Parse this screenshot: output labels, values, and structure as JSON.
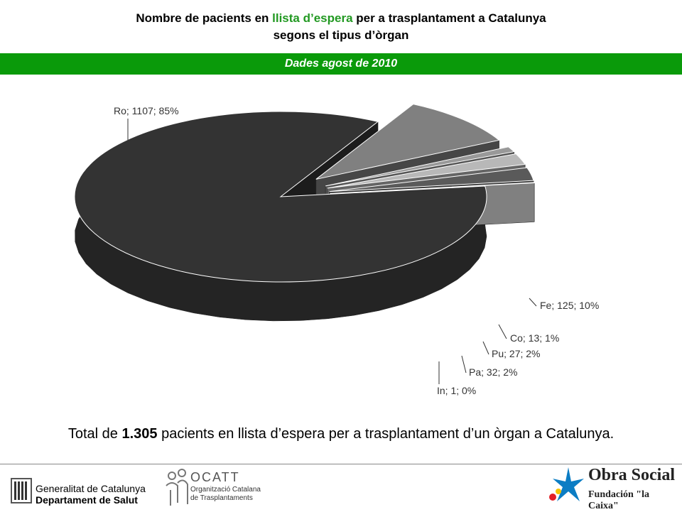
{
  "title": {
    "line1_pre": "Nombre de pacients en ",
    "line1_highlight": "llista d’espera",
    "line1_post": " per a trasplantament a Catalunya",
    "line2": "segons el tipus d’òrgan"
  },
  "banner": {
    "text": "Dades agost de 2010"
  },
  "chart_data": {
    "type": "pie",
    "title": "",
    "slices": [
      {
        "name": "Ro",
        "value": 1107,
        "percent": "85%",
        "label": "Ro; 1107; 85%",
        "color": "#333333"
      },
      {
        "name": "Fe",
        "value": 125,
        "percent": "10%",
        "label": "Fe; 125; 10%",
        "color": "#808080"
      },
      {
        "name": "Co",
        "value": 13,
        "percent": "1%",
        "label": "Co; 13; 1%",
        "color": "#999999"
      },
      {
        "name": "Pu",
        "value": 27,
        "percent": "2%",
        "label": "Pu; 27; 2%",
        "color": "#b8b8b8"
      },
      {
        "name": "Pa",
        "value": 32,
        "percent": "2%",
        "label": "Pa; 32; 2%",
        "color": "#5a5a5a"
      },
      {
        "name": "In",
        "value": 1,
        "percent": "0%",
        "label": "In; 1; 0%",
        "color": "#e8e8e8"
      }
    ],
    "style": "3d-exploded"
  },
  "summary": {
    "pre": "Total de ",
    "bold": "1.305",
    "post": " pacients en llista d’espera per a trasplantament d’un òrgan a Catalunya."
  },
  "footer": {
    "generalitat_line1": "Generalitat de Catalunya",
    "generalitat_line2": "Departament de Salut",
    "ocatt_name": "OCATT",
    "ocatt_sub1": "Organització Catalana",
    "ocatt_sub2": "de Trasplantaments",
    "obra_line1": "Obra Social",
    "obra_line2": "Fundación \"la Caixa\""
  }
}
